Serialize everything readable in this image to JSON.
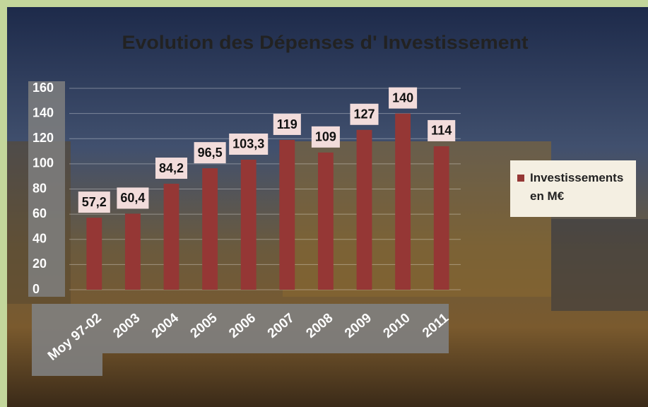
{
  "chart_data": {
    "type": "bar",
    "title": "Evolution des Dépenses d' Investissement",
    "categories": [
      "Moy 97-02",
      "2003",
      "2004",
      "2005",
      "2006",
      "2007",
      "2008",
      "2009",
      "2010",
      "2011"
    ],
    "series": [
      {
        "name": "Investissements en M€",
        "color": "#953735",
        "values": [
          57.2,
          60.4,
          84.2,
          96.5,
          103.3,
          119,
          109,
          127,
          140,
          114
        ],
        "value_labels": [
          "57,2",
          "60,4",
          "84,2",
          "96,5",
          "103,3",
          "119",
          "109",
          "127",
          "140",
          "114"
        ]
      }
    ],
    "ylim": [
      0,
      160
    ],
    "yticks": [
      0,
      20,
      40,
      60,
      80,
      100,
      120,
      140,
      160
    ],
    "grid": true,
    "legend": "right"
  }
}
